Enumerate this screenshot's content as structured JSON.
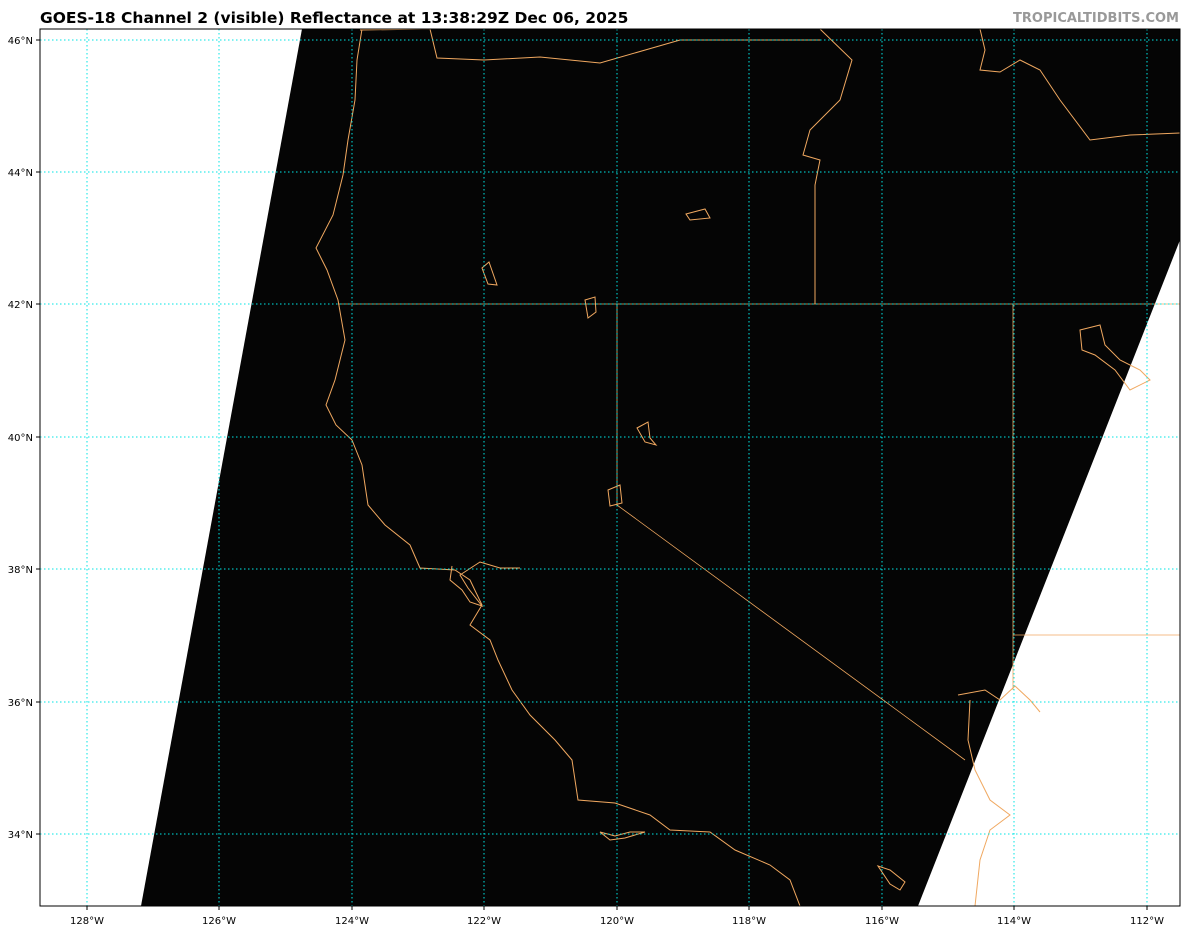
{
  "title": "GOES-18 Channel 2 (visible) Reflectance at 13:38:29Z Dec 06, 2025",
  "credit": "TROPICALTIDBITS.COM",
  "map": {
    "projection": "equirectangular",
    "extent": {
      "lon": [
        -128.7,
        -111.5
      ],
      "lat": [
        32.9,
        46.15
      ]
    },
    "lat_labels": [
      "46°N",
      "44°N",
      "42°N",
      "40°N",
      "38°N",
      "36°N",
      "34°N"
    ],
    "lat_values": [
      46,
      44,
      42,
      40,
      38,
      36,
      34
    ],
    "lon_labels": [
      "128°W",
      "126°W",
      "124°W",
      "122°W",
      "120°W",
      "118°W",
      "116°W",
      "114°W",
      "112°W"
    ],
    "lon_values": [
      -128,
      -126,
      -124,
      -122,
      -120,
      -118,
      -116,
      -114,
      -112
    ],
    "colors": {
      "gridlines": "#00e5e5",
      "coastlines": "#f0a860",
      "imagery": "#050505",
      "no_data": "#ffffff"
    }
  }
}
